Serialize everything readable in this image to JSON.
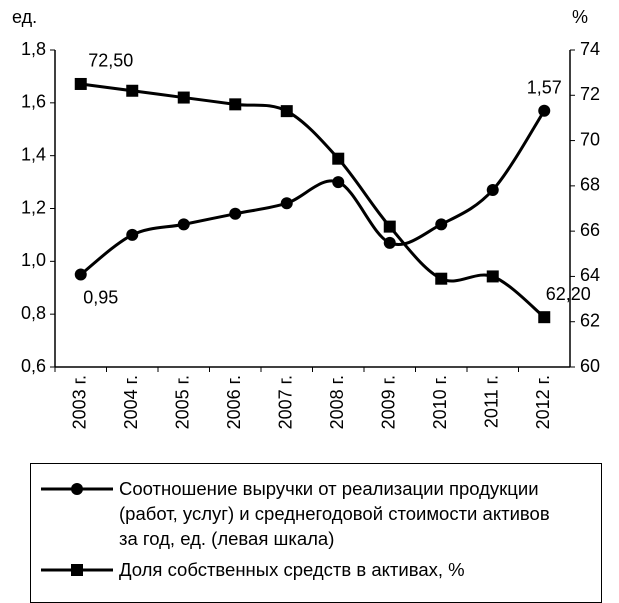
{
  "chart_data": {
    "type": "line",
    "y_unit_label": "ед.",
    "y2_unit_label": "%",
    "categories": [
      "2003 г.",
      "2004 г.",
      "2005 г.",
      "2006 г.",
      "2007 г.",
      "2008 г.",
      "2009 г.",
      "2010 г.",
      "2011 г.",
      "2012 г."
    ],
    "series": [
      {
        "name": "Соотношение выручки от реализации продукции (работ, услуг) и среднегодовой стоимости активов за год, ед. (левая шкала)",
        "color": "#000000",
        "marker": "circle",
        "axis": "y",
        "values": [
          0.95,
          1.1,
          1.14,
          1.18,
          1.22,
          1.3,
          1.07,
          1.14,
          1.27,
          1.57
        ],
        "value_labels": [
          "0,95",
          null,
          null,
          null,
          null,
          null,
          null,
          null,
          null,
          "1,57"
        ]
      },
      {
        "name": "Доля собственных  средств в активах, %",
        "color": "#000000",
        "marker": "square",
        "axis": "y2",
        "values": [
          72.5,
          72.2,
          71.9,
          71.6,
          71.3,
          69.2,
          66.2,
          63.9,
          64.0,
          62.2
        ],
        "value_labels": [
          "72,50",
          null,
          null,
          null,
          null,
          null,
          null,
          null,
          null,
          "62,20"
        ]
      }
    ],
    "ylim": [
      0.6,
      1.8
    ],
    "yticks": [
      {
        "value": 0.6,
        "label": "0,6"
      },
      {
        "value": 0.8,
        "label": "0,8"
      },
      {
        "value": 1.0,
        "label": "1,0"
      },
      {
        "value": 1.2,
        "label": "1,2"
      },
      {
        "value": 1.4,
        "label": "1,4"
      },
      {
        "value": 1.6,
        "label": "1,6"
      },
      {
        "value": 1.8,
        "label": "1,8"
      }
    ],
    "y2lim": [
      60,
      74
    ],
    "y2ticks": [
      60,
      62,
      64,
      66,
      68,
      70,
      72,
      74
    ],
    "grid": false,
    "legend": "bottom"
  }
}
